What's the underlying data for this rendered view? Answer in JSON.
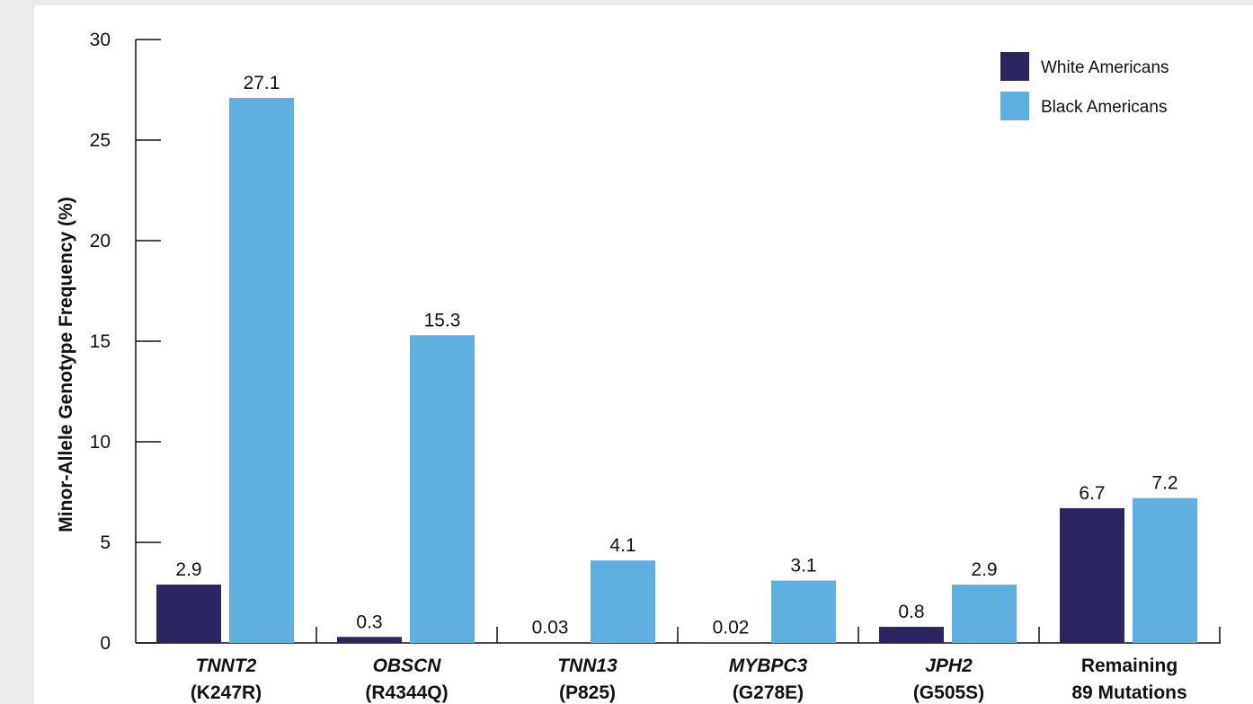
{
  "chart_data": {
    "type": "bar",
    "title": "",
    "xlabel": "",
    "ylabel": "Minor-Allele Genotype Frequency (%)",
    "ylim": [
      0,
      30
    ],
    "yticks": [
      0,
      5,
      10,
      15,
      20,
      25,
      30
    ],
    "grid": false,
    "legend_position": "top-right",
    "categories": [
      {
        "gene": "TNNT2",
        "variant": "(K247R)",
        "italic": true
      },
      {
        "gene": "OBSCN",
        "variant": "(R4344Q)",
        "italic": true
      },
      {
        "gene": "TNN13",
        "variant": "(P825)",
        "italic": true
      },
      {
        "gene": "MYBPC3",
        "variant": "(G278E)",
        "italic": true
      },
      {
        "gene": "JPH2",
        "variant": "(G505S)",
        "italic": true
      },
      {
        "gene": "Remaining",
        "variant": "89 Mutations",
        "italic": false
      }
    ],
    "series": [
      {
        "name": "White Americans",
        "color": "#2b2660",
        "values": [
          2.9,
          0.3,
          0.03,
          0.02,
          0.8,
          6.7
        ],
        "labels": [
          "2.9",
          "0.3",
          "0.03",
          "0.02",
          "0.8",
          "6.7"
        ]
      },
      {
        "name": "Black Americans",
        "color": "#5fb0e0",
        "values": [
          27.1,
          15.3,
          4.1,
          3.1,
          2.9,
          7.2
        ],
        "labels": [
          "27.1",
          "15.3",
          "4.1",
          "3.1",
          "2.9",
          "7.2"
        ]
      }
    ]
  }
}
